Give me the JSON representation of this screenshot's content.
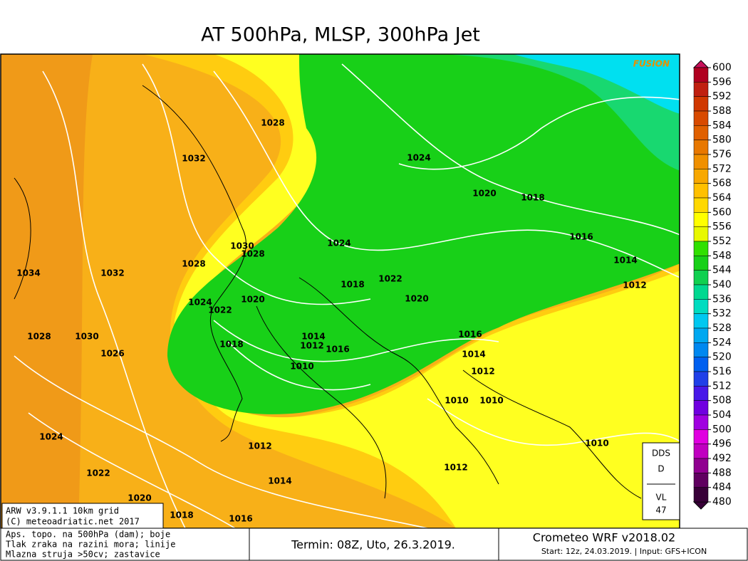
{
  "title": "AT 500hPa, MLSP, 300hPa Jet",
  "map": {
    "corner_tag": "FUSION",
    "isobar_labels": [
      1028,
      1032,
      1024,
      1020,
      1018,
      1016,
      1014,
      1012,
      1024,
      1030,
      1028,
      1028,
      1034,
      1032,
      1022,
      1018,
      1020,
      1020,
      1024,
      1022,
      1016,
      1014,
      1012,
      1016,
      1018,
      1014,
      1012,
      1010,
      1030,
      1028,
      1026,
      1010,
      1010,
      1010,
      1024,
      1012,
      1012,
      1022,
      1014,
      1020,
      1018,
      1016
    ],
    "model_box": [
      "ARW v3.9.1.1 10km grid",
      "(C) meteoadriatic.net 2017"
    ],
    "dds_box": [
      "DDS",
      "D",
      "VL",
      "47"
    ]
  },
  "colorbar": {
    "levels": [
      600,
      596,
      592,
      588,
      584,
      580,
      576,
      572,
      568,
      564,
      560,
      556,
      552,
      548,
      544,
      540,
      536,
      532,
      528,
      524,
      520,
      516,
      512,
      508,
      504,
      500,
      496,
      492,
      488,
      484,
      480
    ],
    "colors": [
      "#c8105a",
      "#b00020",
      "#c02010",
      "#d03800",
      "#d84a00",
      "#e06000",
      "#e87800",
      "#f09000",
      "#f8a800",
      "#ffc000",
      "#ffd800",
      "#ffff00",
      "#e8f800",
      "#30e000",
      "#18d018",
      "#10d050",
      "#00d890",
      "#00dcc0",
      "#00c8f0",
      "#00a8f0",
      "#0088f0",
      "#0060f0",
      "#2040e8",
      "#4818e8",
      "#7000e0",
      "#a000e0",
      "#e000e0",
      "#c000c0",
      "#900090",
      "#600060",
      "#380038"
    ]
  },
  "footer": {
    "legend": [
      "Aps. topo. na 500hPa (dam); boje",
      "Tlak zraka na razini mora; linije",
      "Mlazna struja >50cv; zastavice"
    ],
    "termin": "Termin: 08Z, Uto, 26.3.2019.",
    "version": "Crometeo WRF v2018.02",
    "start": "Start: 12z, 24.03.2019. | Input: GFS+ICON"
  }
}
